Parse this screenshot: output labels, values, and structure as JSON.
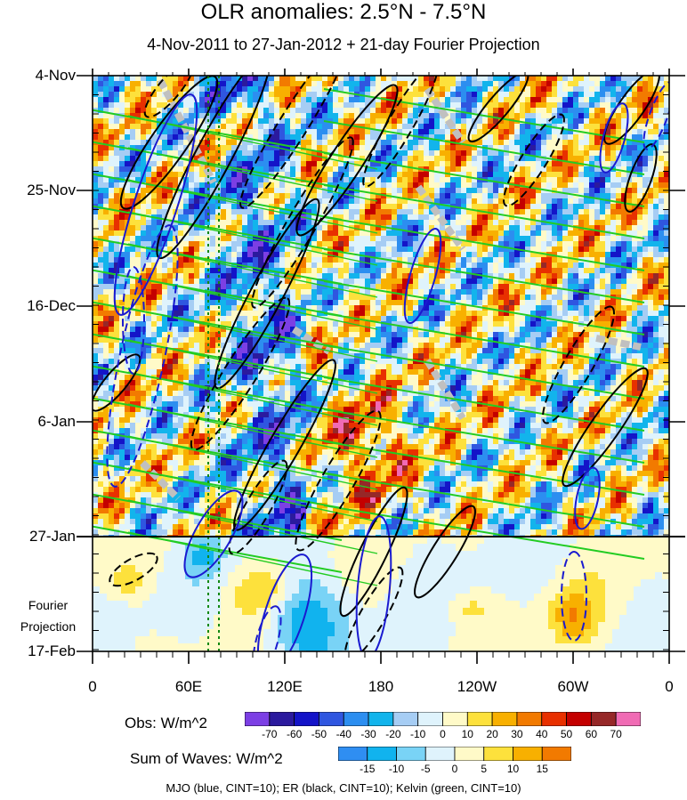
{
  "chart_data": {
    "type": "heatmap",
    "title": "OLR anomalies: 2.5°N - 7.5°N",
    "subtitle": "4-Nov-2011 to 27-Jan-2012 + 21-day Fourier Projection",
    "y_tick_labels": [
      "4-Nov",
      "25-Nov",
      "16-Dec",
      "6-Jan",
      "27-Jan",
      "17-Feb"
    ],
    "x_tick_labels": [
      "0",
      "60E",
      "120E",
      "180",
      "120W",
      "60W",
      "0"
    ],
    "projection_label": [
      "Fourier",
      "Projection"
    ],
    "obs_colorbar": {
      "label": "Obs: W/m^2",
      "levels": [
        "-70",
        "-60",
        "-50",
        "-40",
        "-30",
        "-20",
        "-10",
        "0",
        "10",
        "20",
        "30",
        "40",
        "50",
        "60",
        "70"
      ],
      "colors": [
        "#7c3fe4",
        "#2b1a9e",
        "#1414c8",
        "#2f56e0",
        "#2c8ef0",
        "#12b4ec",
        "#a6cdf4",
        "#dff3fc",
        "#fffac8",
        "#fde13c",
        "#f8b000",
        "#f27a00",
        "#e83000",
        "#c40000",
        "#962828",
        "#f06bb4"
      ]
    },
    "waves_colorbar": {
      "label": "Sum of Waves: W/m^2",
      "levels": [
        "-15",
        "-10",
        "-5",
        "0",
        "5",
        "10",
        "15"
      ],
      "colors": [
        "#2f8ef2",
        "#11b3ee",
        "#79d3f6",
        "#dff3fc",
        "#fffac8",
        "#fde13c",
        "#f8b000",
        "#f27a00"
      ]
    },
    "footer": "MJO (blue, CINT=10); ER (black, CINT=10); Kelvin (green, CINT=10)",
    "colors": {
      "mjo": "#1a1ad0",
      "er": "#000000",
      "kelvin": "#22cc22"
    }
  }
}
